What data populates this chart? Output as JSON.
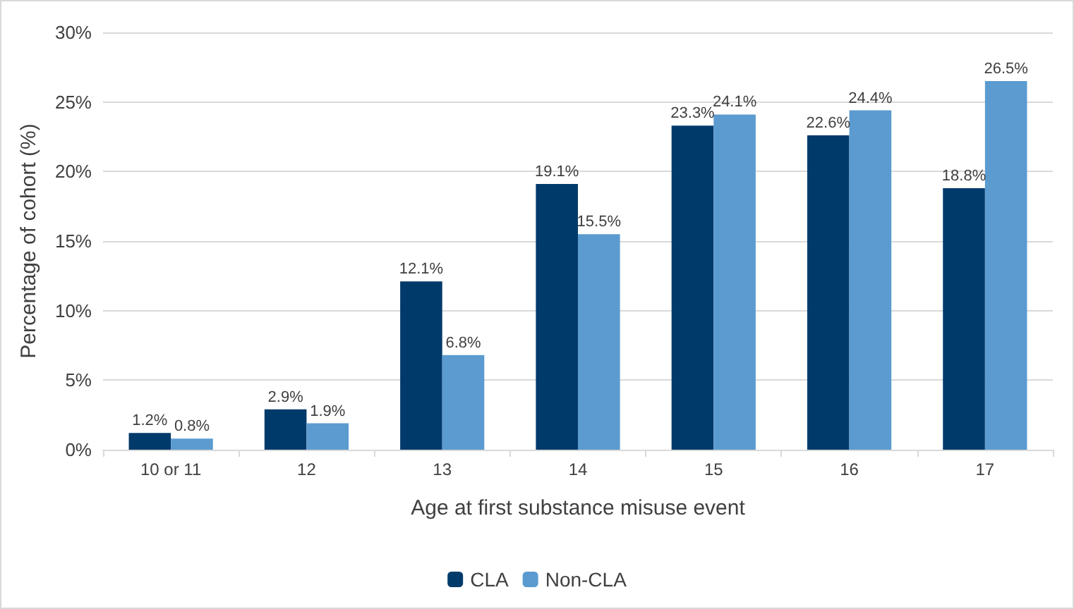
{
  "chart_data": {
    "type": "bar",
    "xlabel": "Age at first substance misuse event",
    "ylabel": "Percentage of cohort (%)",
    "categories": [
      "10 or 11",
      "12",
      "13",
      "14",
      "15",
      "16",
      "17"
    ],
    "series": [
      {
        "name": "CLA",
        "color": "#003a6b",
        "values": [
          1.2,
          2.9,
          12.1,
          19.1,
          23.3,
          22.6,
          18.8
        ],
        "value_labels": [
          "1.2%",
          "2.9%",
          "12.1%",
          "19.1%",
          "23.3%",
          "22.6%",
          "18.8%"
        ]
      },
      {
        "name": "Non-CLA",
        "color": "#5b9bcf",
        "values": [
          0.8,
          1.9,
          6.8,
          15.5,
          24.1,
          24.4,
          26.5
        ],
        "value_labels": [
          "0.8%",
          "1.9%",
          "6.8%",
          "15.5%",
          "24.1%",
          "24.4%",
          "26.5%"
        ]
      }
    ],
    "ylim": [
      0,
      30
    ],
    "yticks": [
      {
        "value": 0,
        "label": "0%"
      },
      {
        "value": 5,
        "label": "5%"
      },
      {
        "value": 10,
        "label": "10%"
      },
      {
        "value": 15,
        "label": "15%"
      },
      {
        "value": 20,
        "label": "20%"
      },
      {
        "value": 25,
        "label": "25%"
      },
      {
        "value": 30,
        "label": "30%"
      }
    ],
    "grid": "y",
    "legend": "bottom"
  }
}
